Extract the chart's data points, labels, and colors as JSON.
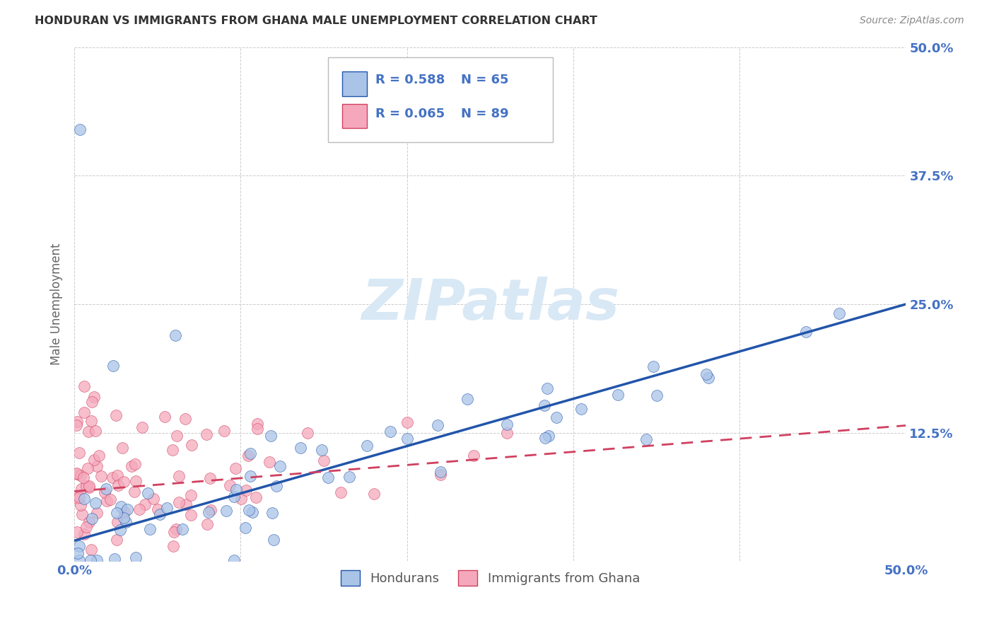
{
  "title": "HONDURAN VS IMMIGRANTS FROM GHANA MALE UNEMPLOYMENT CORRELATION CHART",
  "source": "Source: ZipAtlas.com",
  "ylabel": "Male Unemployment",
  "xlim": [
    0.0,
    0.5
  ],
  "ylim": [
    0.0,
    0.5
  ],
  "xtick_vals": [
    0.0,
    0.1,
    0.2,
    0.3,
    0.4,
    0.5
  ],
  "ytick_vals": [
    0.0,
    0.125,
    0.25,
    0.375,
    0.5
  ],
  "xticklabels": [
    "0.0%",
    "",
    "",
    "",
    "",
    "50.0%"
  ],
  "yticklabels": [
    "",
    "12.5%",
    "25.0%",
    "37.5%",
    "50.0%"
  ],
  "hondurans_fill": "#aac4e8",
  "ghana_fill": "#f5a8bc",
  "hondurans_line_color": "#2255aa",
  "ghana_line_color": "#d04060",
  "R_hondurans": 0.588,
  "N_hondurans": 65,
  "R_ghana": 0.065,
  "N_ghana": 89,
  "legend_label_1": "Hondurans",
  "legend_label_2": "Immigrants from Ghana",
  "background_color": "#ffffff",
  "grid_color": "#cccccc",
  "title_color": "#333333",
  "tick_color": "#4472c4",
  "ylabel_color": "#666666",
  "source_color": "#888888",
  "watermark_color": "#d8e8f5",
  "hon_line_start_y": 0.02,
  "hon_line_end_y": 0.25,
  "gha_line_start_y": 0.068,
  "gha_line_end_y": 0.132
}
